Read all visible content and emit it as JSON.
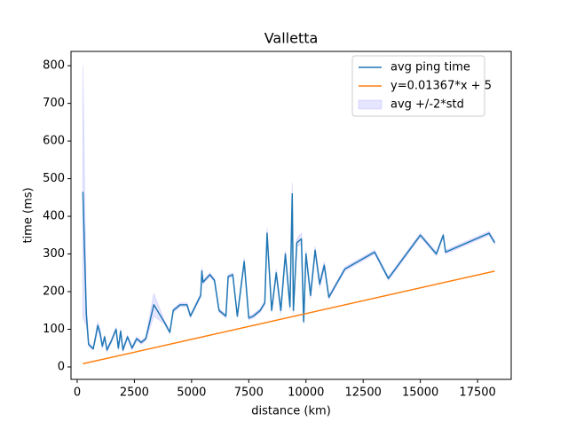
{
  "chart_data": {
    "type": "line",
    "title": "Valletta",
    "x_label": "distance (km)",
    "y_label": "time (ms)",
    "xlim": [
      -270,
      18970
    ],
    "ylim": [
      -33,
      838
    ],
    "xticks": [
      0,
      2500,
      5000,
      7500,
      10000,
      12500,
      15000,
      17500
    ],
    "yticks": [
      0,
      100,
      200,
      300,
      400,
      500,
      600,
      700,
      800
    ],
    "legend": "upper right",
    "x": [
      250,
      400,
      500,
      700,
      800,
      900,
      1000,
      1100,
      1200,
      1300,
      1500,
      1700,
      1800,
      1900,
      2000,
      2200,
      2400,
      2600,
      2800,
      3000,
      3350,
      3800,
      4050,
      4200,
      4500,
      4800,
      4950,
      5400,
      5450,
      5500,
      5800,
      6000,
      6200,
      6500,
      6600,
      6800,
      7000,
      7300,
      7500,
      7700,
      8000,
      8200,
      8300,
      8500,
      8700,
      8900,
      9100,
      9300,
      9400,
      9450,
      9600,
      9800,
      9900,
      10000,
      10200,
      10400,
      10600,
      10800,
      11000,
      11700,
      13000,
      13600,
      15000,
      15700,
      16000,
      16100,
      18000,
      18250
    ],
    "series": [
      {
        "name": "avg ping time",
        "color": "#1f77b4",
        "values": [
          465,
          140,
          60,
          48,
          78,
          110,
          90,
          55,
          80,
          45,
          70,
          100,
          50,
          95,
          45,
          80,
          50,
          75,
          65,
          75,
          165,
          120,
          92,
          150,
          165,
          165,
          135,
          190,
          255,
          225,
          245,
          230,
          150,
          135,
          240,
          245,
          135,
          280,
          130,
          135,
          150,
          170,
          355,
          150,
          250,
          150,
          300,
          160,
          460,
          150,
          330,
          340,
          120,
          300,
          190,
          310,
          220,
          270,
          185,
          260,
          305,
          235,
          350,
          300,
          350,
          305,
          355,
          330
        ]
      },
      {
        "name": "y=0.01367*x + 5",
        "color": "#ff7f0e",
        "x": [
          250,
          18250
        ],
        "values": [
          8.4,
          254.5
        ]
      }
    ],
    "band": {
      "name": "avg +/-2*std",
      "color": "#0000ff",
      "alpha": 0.1,
      "lower": [
        130,
        110,
        55,
        45,
        70,
        100,
        80,
        50,
        75,
        40,
        65,
        95,
        45,
        90,
        40,
        75,
        45,
        70,
        60,
        70,
        135,
        115,
        88,
        145,
        160,
        160,
        130,
        185,
        245,
        220,
        240,
        225,
        145,
        130,
        235,
        240,
        130,
        270,
        125,
        130,
        145,
        165,
        340,
        145,
        240,
        140,
        290,
        150,
        430,
        140,
        320,
        325,
        115,
        290,
        180,
        300,
        210,
        260,
        180,
        255,
        300,
        230,
        345,
        295,
        345,
        300,
        350,
        325
      ],
      "upper": [
        800,
        170,
        65,
        52,
        85,
        120,
        100,
        60,
        85,
        50,
        75,
        105,
        55,
        100,
        50,
        85,
        55,
        80,
        70,
        80,
        195,
        125,
        96,
        155,
        170,
        170,
        140,
        195,
        265,
        230,
        250,
        235,
        155,
        140,
        245,
        250,
        140,
        290,
        135,
        140,
        155,
        175,
        370,
        155,
        260,
        160,
        310,
        170,
        490,
        160,
        340,
        355,
        125,
        310,
        200,
        320,
        230,
        280,
        190,
        265,
        310,
        240,
        355,
        305,
        355,
        310,
        360,
        335
      ]
    }
  }
}
